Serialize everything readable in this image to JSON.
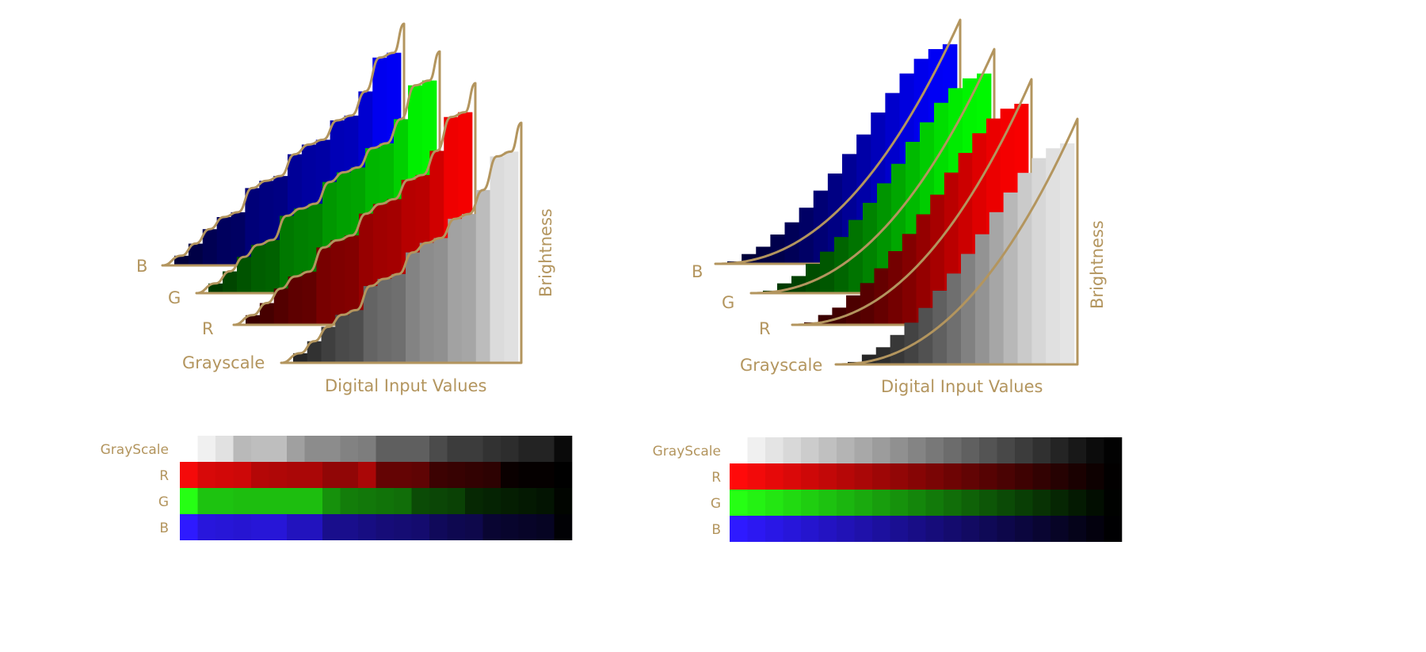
{
  "labels": {
    "b": "B",
    "g": "G",
    "r": "R",
    "gray": "Grayscale",
    "x_axis": "Digital Input Values",
    "y_axis": "Brightness"
  },
  "strip_labels": {
    "gray": "GrayScale",
    "r": "R",
    "g": "G",
    "b": "B"
  },
  "colors": {
    "label": "#b3955e",
    "outline": "#b3955e"
  },
  "panels": [
    {
      "curve": "stepped",
      "bar_levels": [
        0.04,
        0.09,
        0.15,
        0.2,
        0.22,
        0.32,
        0.35,
        0.37,
        0.46,
        0.5,
        0.52,
        0.6,
        0.62,
        0.72,
        0.86,
        0.88
      ],
      "strip": {
        "gray": [
          240,
          225,
          185,
          190,
          190,
          160,
          140,
          140,
          130,
          125,
          95,
          95,
          95,
          75,
          60,
          60,
          50,
          45,
          35,
          35,
          10
        ],
        "r": [
          245,
          215,
          210,
          205,
          180,
          175,
          170,
          170,
          145,
          145,
          170,
          100,
          100,
          95,
          60,
          55,
          50,
          45,
          10,
          5,
          5,
          0
        ],
        "g": [
          255,
          195,
          195,
          190,
          190,
          190,
          190,
          190,
          145,
          125,
          120,
          115,
          110,
          75,
          70,
          65,
          40,
          35,
          30,
          25,
          20,
          5
        ],
        "b": [
          255,
          220,
          215,
          210,
          215,
          215,
          190,
          190,
          140,
          140,
          130,
          120,
          115,
          110,
          90,
          80,
          75,
          50,
          45,
          40,
          35,
          5
        ]
      }
    },
    {
      "curve": "smooth",
      "bar_levels": [
        0.01,
        0.04,
        0.07,
        0.12,
        0.17,
        0.23,
        0.3,
        0.37,
        0.45,
        0.53,
        0.62,
        0.7,
        0.78,
        0.84,
        0.88,
        0.9
      ],
      "strip": {
        "gray": [
          240,
          228,
          216,
          204,
          192,
          180,
          168,
          156,
          144,
          132,
          120,
          108,
          96,
          84,
          72,
          60,
          48,
          36,
          24,
          12,
          2
        ],
        "r": [
          255,
          242,
          230,
          218,
          206,
          194,
          182,
          170,
          158,
          146,
          134,
          122,
          110,
          98,
          86,
          74,
          62,
          50,
          38,
          26,
          14,
          2
        ],
        "g": [
          255,
          242,
          230,
          218,
          206,
          194,
          182,
          170,
          158,
          146,
          134,
          122,
          110,
          98,
          86,
          74,
          62,
          50,
          38,
          26,
          14,
          2
        ],
        "b": [
          255,
          242,
          230,
          218,
          206,
          194,
          182,
          170,
          158,
          146,
          134,
          122,
          110,
          98,
          86,
          74,
          62,
          50,
          38,
          26,
          14,
          2
        ]
      }
    }
  ]
}
